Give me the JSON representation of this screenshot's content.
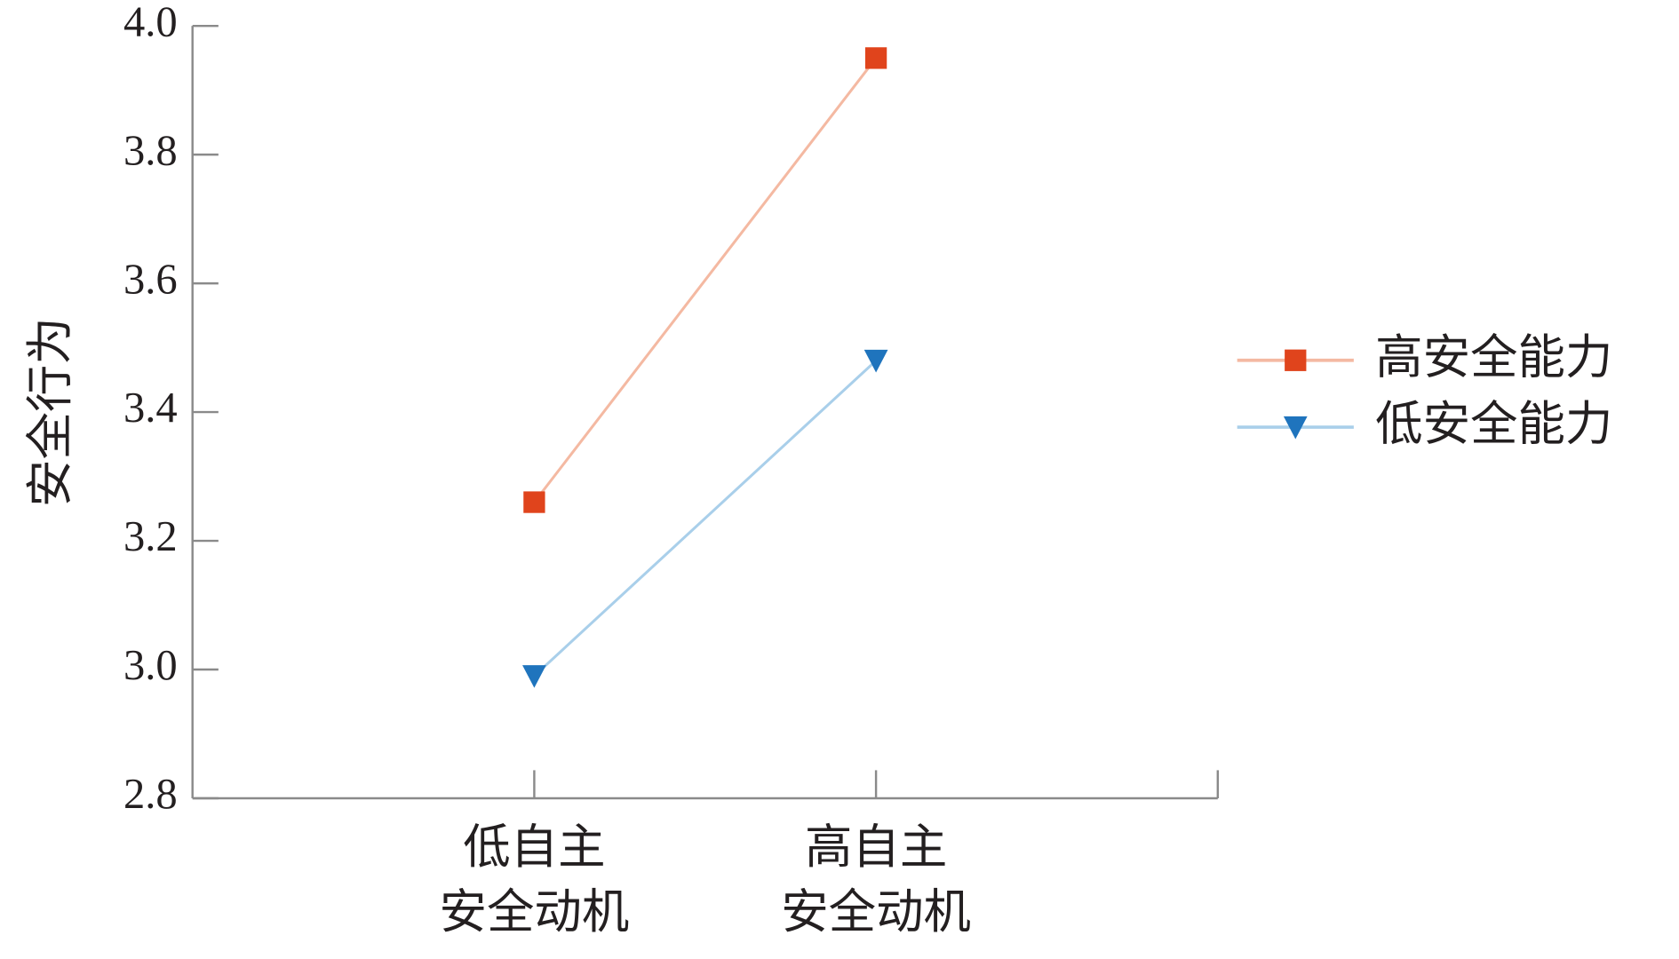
{
  "chart_data": {
    "type": "line",
    "y_label": "安全行为",
    "categories": [
      [
        "低自主",
        "安全动机"
      ],
      [
        "高自主",
        "安全动机"
      ],
      null
    ],
    "series": [
      {
        "name": "高安全能力",
        "color": "#e0441c",
        "line_color": "#f4b9a2",
        "marker": "square",
        "values": [
          3.26,
          3.95,
          null
        ]
      },
      {
        "name": "低安全能力",
        "color": "#1f74bd",
        "line_color": "#a9cfea",
        "marker": "triangle",
        "values": [
          2.99,
          3.48,
          null
        ]
      }
    ],
    "ylim": [
      2.8,
      4.0
    ],
    "yticks": [
      {
        "value": 2.8,
        "label": "2.8"
      },
      {
        "value": 3.0,
        "label": "3.0"
      },
      {
        "value": 3.2,
        "label": "3.2"
      },
      {
        "value": 3.4,
        "label": "3.4"
      },
      {
        "value": 3.6,
        "label": "3.6"
      },
      {
        "value": 3.8,
        "label": "3.8"
      },
      {
        "value": 4.0,
        "label": "4.0"
      }
    ],
    "legend": "right"
  }
}
